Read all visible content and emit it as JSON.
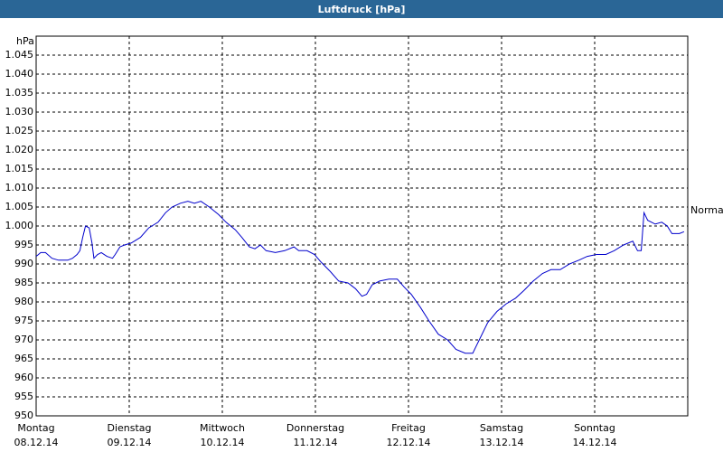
{
  "chart_data": {
    "type": "line",
    "title": "Luftdruck [hPa]",
    "y_unit": "hPa",
    "reference_label": "Normal",
    "reference_value": 1004,
    "xlim": [
      0,
      7
    ],
    "xticks": [
      {
        "value": 0,
        "label": "Montag",
        "date": "08.12.14"
      },
      {
        "value": 1,
        "label": "Dienstag",
        "date": "09.12.14"
      },
      {
        "value": 2,
        "label": "Mittwoch",
        "date": "10.12.14"
      },
      {
        "value": 3,
        "label": "Donnerstag",
        "date": "11.12.14"
      },
      {
        "value": 4,
        "label": "Freitag",
        "date": "12.12.14"
      },
      {
        "value": 5,
        "label": "Samstag",
        "date": "13.12.14"
      },
      {
        "value": 6,
        "label": "Sonntag",
        "date": "14.12.14"
      }
    ],
    "ylim": [
      950,
      1050
    ],
    "yticks": [
      950,
      955,
      960,
      965,
      970,
      975,
      980,
      985,
      990,
      995,
      {
        "value": 1000,
        "label": "1.000"
      },
      {
        "value": 1005,
        "label": "1.005"
      },
      {
        "value": 1010,
        "label": "1.010"
      },
      {
        "value": 1015,
        "label": "1.015"
      },
      {
        "value": 1020,
        "label": "1.020"
      },
      {
        "value": 1025,
        "label": "1.025"
      },
      {
        "value": 1030,
        "label": "1.030"
      },
      {
        "value": 1035,
        "label": "1.035"
      },
      {
        "value": 1040,
        "label": "1.040"
      },
      {
        "value": 1045,
        "label": "1.045"
      }
    ],
    "grid": true,
    "series": [
      {
        "color": "#0000cc",
        "x": [
          0,
          0.05,
          0.1,
          0.17,
          0.24,
          0.34,
          0.39,
          0.44,
          0.47,
          0.5,
          0.53,
          0.57,
          0.6,
          0.62,
          0.66,
          0.7,
          0.76,
          0.82,
          0.85,
          0.9,
          0.95,
          1.02,
          1.12,
          1.21,
          1.31,
          1.39,
          1.46,
          1.55,
          1.63,
          1.7,
          1.77,
          1.86,
          1.96,
          2.04,
          2.14,
          2.21,
          2.29,
          2.35,
          2.41,
          2.47,
          2.57,
          2.67,
          2.77,
          2.82,
          2.91,
          2.99,
          3.06,
          3.16,
          3.25,
          3.35,
          3.43,
          3.5,
          3.55,
          3.61,
          3.69,
          3.79,
          3.88,
          3.95,
          4.03,
          4.13,
          4.22,
          4.32,
          4.42,
          4.51,
          4.61,
          4.69,
          4.76,
          4.85,
          4.95,
          5.05,
          5.15,
          5.24,
          5.34,
          5.44,
          5.53,
          5.63,
          5.73,
          5.83,
          5.92,
          6.02,
          6.12,
          6.21,
          6.31,
          6.41,
          6.46,
          6.5,
          6.53,
          6.57,
          6.65,
          6.72,
          6.78,
          6.83,
          6.91,
          6.96
        ],
        "values": [
          992,
          993,
          993,
          991.5,
          991,
          991,
          991.5,
          992.5,
          993.5,
          997,
          1000,
          999.5,
          995.5,
          991.5,
          992.5,
          993,
          992,
          991.5,
          992.5,
          994.5,
          995,
          995.5,
          997,
          999.5,
          1001,
          1003.5,
          1005,
          1006,
          1006.5,
          1006,
          1006.5,
          1005,
          1003,
          1001,
          999,
          997,
          994.5,
          994,
          995,
          993.5,
          993,
          993.5,
          994.5,
          993.5,
          993.5,
          992.5,
          990.5,
          988,
          985.5,
          985,
          983.5,
          981.5,
          982,
          984.5,
          985.5,
          986,
          986,
          984,
          982,
          978.5,
          975,
          971.5,
          970,
          967.5,
          966.5,
          966.5,
          970,
          974.5,
          977.5,
          979.5,
          981,
          983,
          985.5,
          987.5,
          988.5,
          988.5,
          990,
          991,
          992,
          992.5,
          992.5,
          993.5,
          995,
          996,
          993.5,
          993.5,
          1003.5,
          1001.5,
          1000.5,
          1001,
          1000,
          998,
          998,
          998.5
        ]
      }
    ]
  }
}
